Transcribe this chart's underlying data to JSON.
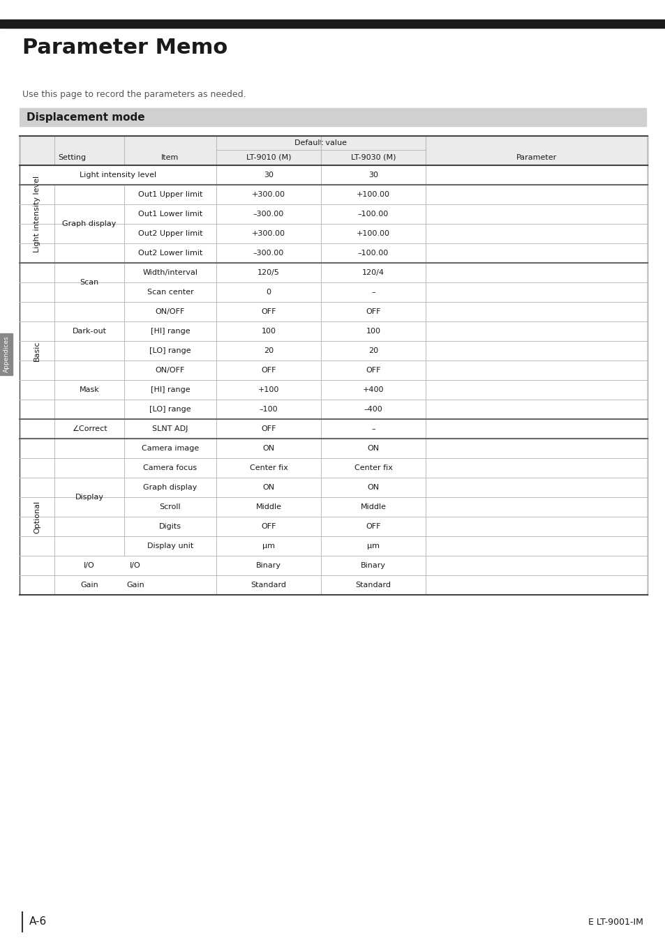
{
  "title": "Parameter Memo",
  "subtitle": "Use this page to record the parameters as needed.",
  "section_title": "Displacement mode",
  "page_label": "A-6",
  "page_ref": "E LT-9001-IM",
  "sidebar_label": "Appendices",
  "table_header": {
    "col1": "Setting",
    "col2": "Item",
    "col3_main": "Default value",
    "col3a": "LT-9010 (M)",
    "col3b": "LT-9030 (M)",
    "col4": "Parameter"
  },
  "rows": [
    {
      "level0": "Light intensity level",
      "level1": "",
      "level2": "",
      "val1": "30",
      "val2": "30",
      "type": "span3"
    },
    {
      "level0": "",
      "level1": "Graph display",
      "level2": "Out1 Upper limit",
      "val1": "+300.00",
      "val2": "+100.00",
      "type": "normal"
    },
    {
      "level0": "",
      "level1": "",
      "level2": "Out1 Lower limit",
      "val1": "–300.00",
      "val2": "–100.00",
      "type": "normal"
    },
    {
      "level0": "",
      "level1": "",
      "level2": "Out2 Upper limit",
      "val1": "+300.00",
      "val2": "+100.00",
      "type": "normal"
    },
    {
      "level0": "",
      "level1": "",
      "level2": "Out2 Lower limit",
      "val1": "–300.00",
      "val2": "–100.00",
      "type": "normal"
    },
    {
      "level0": "Basic",
      "level1": "Scan",
      "level2": "Width/interval",
      "val1": "120/5",
      "val2": "120/4",
      "type": "normal"
    },
    {
      "level0": "",
      "level1": "",
      "level2": "Scan center",
      "val1": "0",
      "val2": "–",
      "type": "normal"
    },
    {
      "level0": "",
      "level1": "Dark-out",
      "level2": "ON/OFF",
      "val1": "OFF",
      "val2": "OFF",
      "type": "normal"
    },
    {
      "level0": "",
      "level1": "",
      "level2": "[HI] range",
      "val1": "100",
      "val2": "100",
      "type": "normal"
    },
    {
      "level0": "",
      "level1": "",
      "level2": "[LO] range",
      "val1": "20",
      "val2": "20",
      "type": "normal"
    },
    {
      "level0": "",
      "level1": "Mask",
      "level2": "ON/OFF",
      "val1": "OFF",
      "val2": "OFF",
      "type": "normal"
    },
    {
      "level0": "",
      "level1": "",
      "level2": "[HI] range",
      "val1": "+100",
      "val2": "+400",
      "type": "normal"
    },
    {
      "level0": "",
      "level1": "",
      "level2": "[LO] range",
      "val1": "–100",
      "val2": "–400",
      "type": "normal"
    },
    {
      "level0": "",
      "level1": "∠Correct",
      "level2": "SLNT ADJ",
      "val1": "OFF",
      "val2": "–",
      "type": "normal"
    },
    {
      "level0": "Optional",
      "level1": "Display",
      "level2": "Camera image",
      "val1": "ON",
      "val2": "ON",
      "type": "normal"
    },
    {
      "level0": "",
      "level1": "",
      "level2": "Camera focus",
      "val1": "Center fix",
      "val2": "Center fix",
      "type": "normal"
    },
    {
      "level0": "",
      "level1": "",
      "level2": "Graph display",
      "val1": "ON",
      "val2": "ON",
      "type": "normal"
    },
    {
      "level0": "",
      "level1": "",
      "level2": "Scroll",
      "val1": "Middle",
      "val2": "Middle",
      "type": "normal"
    },
    {
      "level0": "",
      "level1": "",
      "level2": "Digits",
      "val1": "OFF",
      "val2": "OFF",
      "type": "normal"
    },
    {
      "level0": "",
      "level1": "",
      "level2": "Display unit",
      "val1": "μm",
      "val2": "μm",
      "type": "normal"
    },
    {
      "level0": "",
      "level1": "I/O",
      "level2": "",
      "val1": "Binary",
      "val2": "Binary",
      "type": "span2"
    },
    {
      "level0": "",
      "level1": "Gain",
      "level2": "",
      "val1": "Standard",
      "val2": "Standard",
      "type": "span2"
    }
  ],
  "colors": {
    "black_bar": "#1a1a1a",
    "section_bg": "#d0d0d0",
    "header_bg": "#ebebeb",
    "table_line": "#bbbbbb",
    "thick_line": "#888888",
    "sidebar_bg": "#888888",
    "sidebar_text": "#ffffff",
    "text": "#1a1a1a",
    "light_text": "#555555"
  },
  "thick_after_rows": [
    0,
    4,
    12,
    13
  ]
}
